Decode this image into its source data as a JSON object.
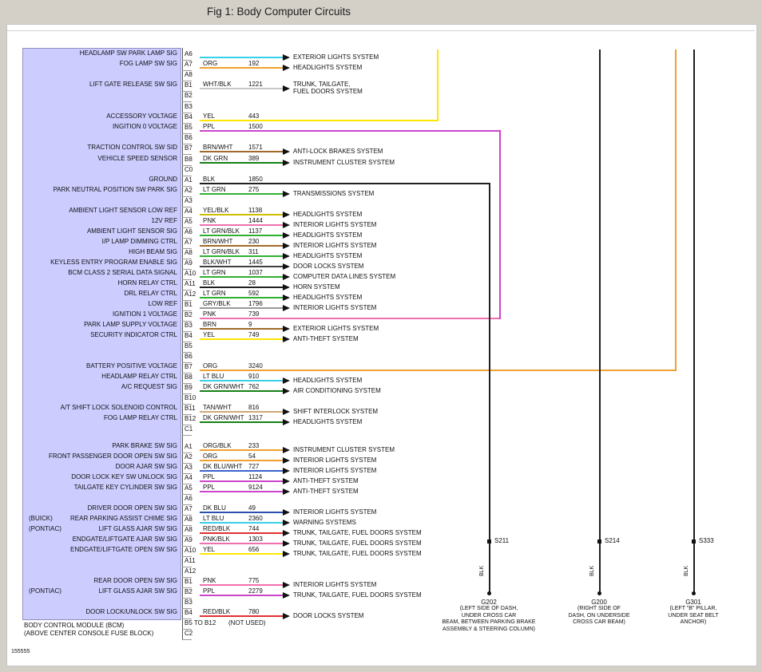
{
  "title": "Fig 1: Body Computer Circuits",
  "module": {
    "name": "BODY CONTROL MODULE (BCM)",
    "location": "(ABOVE CENTER CONSOLE FUSE BLOCK)"
  },
  "doc_number": "155555",
  "wire_colors": {
    "ORG": "#f0a030",
    "ORG/BLK": "#f0a030",
    "YEL": "#ffe600",
    "YEL/BLK": "#cdbf00",
    "PPL": "#cc44cc",
    "PNK": "#f06fae",
    "PNK/BLK": "#f06fae",
    "BRN": "#a06a28",
    "BRN/WHT": "#a06a28",
    "DK GRN": "#168016",
    "DK GRN/WHT": "#168016",
    "LT GRN": "#30b030",
    "LT GRN/BLK": "#30b030",
    "BLK": "#202020",
    "BLK/WHT": "#404040",
    "WHT/BLK": "#c8c8c8",
    "GRY/BLK": "#9a9a9a",
    "LT BLU": "#38d0e8",
    "TAN/WHT": "#d0a878",
    "DK BLU": "#2a4fae",
    "DK BLU/WHT": "#3a62cc",
    "RED/BLK": "#e03030"
  },
  "connectors": [
    {
      "end_label": "C0",
      "rows": [
        {
          "pin": "A6",
          "wire": "",
          "circuit": "",
          "color": "LT BLU",
          "dest": "EXTERIOR LIGHTS SYSTEM",
          "label": "HEADLAMP SW PARK LAMP SIG"
        },
        {
          "pin": "A7",
          "wire": "ORG",
          "circuit": "192",
          "color": "ORG",
          "dest": "HEADLIGHTS SYSTEM",
          "label": "FOG LAMP SW SIG"
        },
        {
          "pin": "A8"
        },
        {
          "pin": "B1",
          "wire": "WHT/BLK",
          "circuit": "1221",
          "color": "WHT/BLK",
          "dest": "TRUNK, TAILGATE,",
          "dest2": "FUEL DOORS SYSTEM",
          "label": "LIFT GATE RELEASE SW SIG"
        },
        {
          "pin": "B2"
        },
        {
          "pin": "B3"
        },
        {
          "pin": "B4",
          "wire": "YEL",
          "circuit": "443",
          "color": "YEL",
          "bus": "yellow",
          "label": "ACCESSORY VOLTAGE"
        },
        {
          "pin": "B5",
          "wire": "PPL",
          "circuit": "1500",
          "color": "PPL",
          "bus": "magenta",
          "label": "INGITION 0 VOLTAGE"
        },
        {
          "pin": "B6"
        },
        {
          "pin": "B7",
          "wire": "BRN/WHT",
          "circuit": "1571",
          "color": "BRN/WHT",
          "dest": "ANTI-LOCK BRAKES SYSTEM",
          "label": "TRACTION CONTROL SW SID"
        },
        {
          "pin": "B8",
          "wire": "DK GRN",
          "circuit": "389",
          "color": "DK GRN",
          "dest": "INSTRUMENT CLUSTER SYSTEM",
          "label": "VEHICLE SPEED SENSOR"
        }
      ]
    },
    {
      "end_label": "C1",
      "rows": [
        {
          "pin": "A1",
          "wire": "BLK",
          "circuit": "1850",
          "color": "BLK",
          "bus": "ground1",
          "label": "GROUND"
        },
        {
          "pin": "A2",
          "wire": "LT GRN",
          "circuit": "275",
          "color": "LT GRN",
          "dest": "TRANSMISSIONS SYSTEM",
          "label": "PARK NEUTRAL POSITION SW PARK SIG"
        },
        {
          "pin": "A3"
        },
        {
          "pin": "A4",
          "wire": "YEL/BLK",
          "circuit": "1138",
          "color": "YEL/BLK",
          "dest": "HEADLIGHTS SYSTEM",
          "label": "AMBIENT LIGHT SENSOR LOW REF"
        },
        {
          "pin": "A5",
          "wire": "PNK",
          "circuit": "1444",
          "color": "PNK",
          "dest": "INTERIOR LIGHTS SYSTEM",
          "label": "12V REF"
        },
        {
          "pin": "A6",
          "wire": "LT GRN/BLK",
          "circuit": "1137",
          "color": "LT GRN/BLK",
          "dest": "HEADLIGHTS SYSTEM",
          "label": "AMBIENT LIGHT SENSOR SIG"
        },
        {
          "pin": "A7",
          "wire": "BRN/WHT",
          "circuit": "230",
          "color": "BRN/WHT",
          "dest": "INTERIOR LIGHTS SYSTEM",
          "label": "I/P LAMP DIMMING CTRL"
        },
        {
          "pin": "A8",
          "wire": "LT GRN/BLK",
          "circuit": "311",
          "color": "LT GRN/BLK",
          "dest": "HEADLIGHTS SYSTEM",
          "label": "HIGH BEAM SIG"
        },
        {
          "pin": "A9",
          "wire": "BLK/WHT",
          "circuit": "1445",
          "color": "BLK/WHT",
          "dest": "DOOR LOCKS SYSTEM",
          "label": "KEYLESS ENTRY PROGRAM ENABLE SIG"
        },
        {
          "pin": "A10",
          "wire": "LT GRN",
          "circuit": "1037",
          "color": "LT GRN",
          "dest": "COMPUTER DATA LINES SYSTEM",
          "label": "BCM CLASS 2 SERIAL DATA SIGNAL"
        },
        {
          "pin": "A11",
          "wire": "BLK",
          "circuit": "28",
          "color": "BLK",
          "dest": "HORN SYSTEM",
          "label": "HORN RELAY CTRL"
        },
        {
          "pin": "A12",
          "wire": "LT GRN",
          "circuit": "592",
          "color": "LT GRN",
          "dest": "HEADLIGHTS SYSTEM",
          "label": "DRL RELAY CTRL"
        },
        {
          "pin": "B1",
          "wire": "GRY/BLK",
          "circuit": "1796",
          "color": "GRY/BLK",
          "dest": "INTERIOR LIGHTS SYSTEM",
          "label": "LOW REF"
        },
        {
          "pin": "B2",
          "wire": "PNK",
          "circuit": "739",
          "color": "PNK",
          "bus": "magenta",
          "label": "IGNITION 1 VOLTAGE"
        },
        {
          "pin": "B3",
          "wire": "BRN",
          "circuit": "9",
          "color": "BRN",
          "dest": "EXTERIOR LIGHTS SYSTEM",
          "label": "PARK LAMP SUPPLY VOLTAGE"
        },
        {
          "pin": "B4",
          "wire": "YEL",
          "circuit": "749",
          "color": "YEL",
          "dest": "ANTI-THEFT SYSTEM",
          "label": "SECURITY INDICATOR CTRL"
        },
        {
          "pin": "B5"
        },
        {
          "pin": "B6"
        },
        {
          "pin": "B7",
          "wire": "ORG",
          "circuit": "3240",
          "color": "ORG",
          "bus": "orange",
          "label": "BATTERY POSITIVE VOLTAGE"
        },
        {
          "pin": "B8",
          "wire": "LT BLU",
          "circuit": "910",
          "color": "LT BLU",
          "dest": "HEADLIGHTS SYSTEM",
          "label": "HEADLAMP RELAY CTRL"
        },
        {
          "pin": "B9",
          "wire": "DK GRN/WHT",
          "circuit": "762",
          "color": "DK GRN/WHT",
          "dest": "AIR CONDITIONING SYSTEM",
          "label": "A/C REQUEST SIG"
        },
        {
          "pin": "B10"
        },
        {
          "pin": "B11",
          "wire": "TAN/WHT",
          "circuit": "816",
          "color": "TAN/WHT",
          "dest": "SHIFT INTERLOCK SYSTEM",
          "label": "A/T SHIFT LOCK SOLENOID CONTROL"
        },
        {
          "pin": "B12",
          "wire": "DK GRN/WHT",
          "circuit": "1317",
          "color": "DK GRN/WHT",
          "dest": "HEADLIGHTS SYSTEM",
          "label": "FOG LAMP RELAY CTRL"
        }
      ]
    },
    {
      "end_label": "C2",
      "rows": [
        {
          "pin": "A1",
          "wire": "ORG/BLK",
          "circuit": "233",
          "color": "ORG/BLK",
          "dest": "INSTRUMENT CLUSTER SYSTEM",
          "label": "PARK BRAKE SW SIG"
        },
        {
          "pin": "A2",
          "wire": "ORG",
          "circuit": "54",
          "color": "ORG",
          "dest": "INTERIOR LIGHTS SYSTEM",
          "label": "FRONT PASSENGER DOOR OPEN SW SIG"
        },
        {
          "pin": "A3",
          "wire": "DK BLU/WHT",
          "circuit": "727",
          "color": "DK BLU/WHT",
          "dest": "INTERIOR LIGHTS SYSTEM",
          "label": "DOOR AJAR SW SIG"
        },
        {
          "pin": "A4",
          "wire": "PPL",
          "circuit": "1124",
          "color": "PPL",
          "dest": "ANTI-THEFT SYSTEM",
          "label": "DOOR LOCK KEY SW UNLOCK SIG"
        },
        {
          "pin": "A5",
          "wire": "PPL",
          "circuit": "9124",
          "color": "PPL",
          "dest": "ANTI-THEFT SYSTEM",
          "label": "TAILGATE KEY CYLINDER SW SIG"
        },
        {
          "pin": "A6"
        },
        {
          "pin": "A7",
          "wire": "DK BLU",
          "circuit": "49",
          "color": "DK BLU",
          "dest": "INTERIOR LIGHTS SYSTEM",
          "label": "DRIVER DOOR OPEN SW SIG"
        },
        {
          "pin": "A8",
          "wire": "LT BLU",
          "circuit": "2360",
          "color": "LT BLU",
          "dest": "WARNING SYSTEMS",
          "label": "REAR PARKING ASSIST CHIME SIG",
          "prefix": "(BUICK)"
        },
        {
          "pin": "A8",
          "wire": "RED/BLK",
          "circuit": "744",
          "color": "RED/BLK",
          "dest": "TRUNK, TAILGATE, FUEL DOORS SYSTEM",
          "label": "LIFT GLASS AJAR SW SIG",
          "prefix": "(PONTIAC)"
        },
        {
          "pin": "A9",
          "wire": "PNK/BLK",
          "circuit": "1303",
          "color": "PNK/BLK",
          "dest": "TRUNK, TAILGATE, FUEL DOORS SYSTEM",
          "label": "ENDGATE/LIFTGATE AJAR SW SIG"
        },
        {
          "pin": "A10",
          "wire": "YEL",
          "circuit": "656",
          "color": "YEL",
          "dest": "TRUNK, TAILGATE, FUEL DOORS SYSTEM",
          "label": "ENDGATE/LIFTGATE OPEN SW SIG"
        },
        {
          "pin": "A11"
        },
        {
          "pin": "A12"
        },
        {
          "pin": "B1",
          "wire": "PNK",
          "circuit": "775",
          "color": "PNK",
          "dest": "INTERIOR LIGHTS SYSTEM",
          "label": "REAR DOOR OPEN SW SIG"
        },
        {
          "pin": "B2",
          "wire": "PPL",
          "circuit": "2279",
          "color": "PPL",
          "dest": "TRUNK, TAILGATE, FUEL DOORS SYSTEM",
          "label": "LIFT GLASS AJAR SW SIG",
          "prefix": "(PONTIAC)"
        },
        {
          "pin": "B3"
        },
        {
          "pin": "B4",
          "wire": "RED/BLK",
          "circuit": "780",
          "color": "RED/BLK",
          "dest": "DOOR LOCKS SYSTEM",
          "label": "DOOR LOCK/UNLOCK SW SIG"
        },
        {
          "pin": "B5 TO B12",
          "note": "(NOT USED)"
        }
      ]
    }
  ],
  "grounds": [
    {
      "splice": "S211",
      "wire_label": "BLK",
      "ground": "G202",
      "description": [
        "(LEFT SIDE OF DASH,",
        "UNDER CROSS CAR",
        "BEAM, BETWEEN PARKING BRAKE",
        "ASSEMBLY & STEERING COLUMN)"
      ]
    },
    {
      "splice": "S214",
      "wire_label": "BLK",
      "ground": "G200",
      "description": [
        "(RIGHT SIDE OF",
        "DASH, ON UNDERSIDE",
        "CROSS CAR BEAM)"
      ]
    },
    {
      "splice": "S333",
      "wire_label": "BLK",
      "ground": "G301",
      "description": [
        "(LEFT \"B\" PILLAR,",
        "UNDER SEAT BELT",
        "ANCHOR)"
      ]
    }
  ]
}
